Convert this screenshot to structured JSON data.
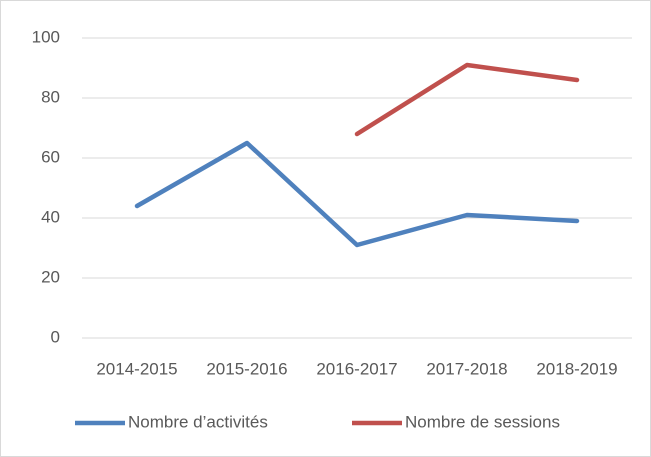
{
  "chart_data": {
    "type": "line",
    "categories": [
      "2014-2015",
      "2015-2016",
      "2016-2017",
      "2017-2018",
      "2018-2019"
    ],
    "series": [
      {
        "name": "Nombre d’activités",
        "color": "#4f81bd",
        "values": [
          44,
          65,
          31,
          41,
          39
        ]
      },
      {
        "name": "Nombre de sessions",
        "color": "#c0504d",
        "values": [
          null,
          null,
          68,
          91,
          86
        ]
      }
    ],
    "ylim": [
      0,
      100
    ],
    "yticks": [
      0,
      20,
      40,
      60,
      80,
      100
    ],
    "grid": true,
    "legend": "bottom"
  }
}
